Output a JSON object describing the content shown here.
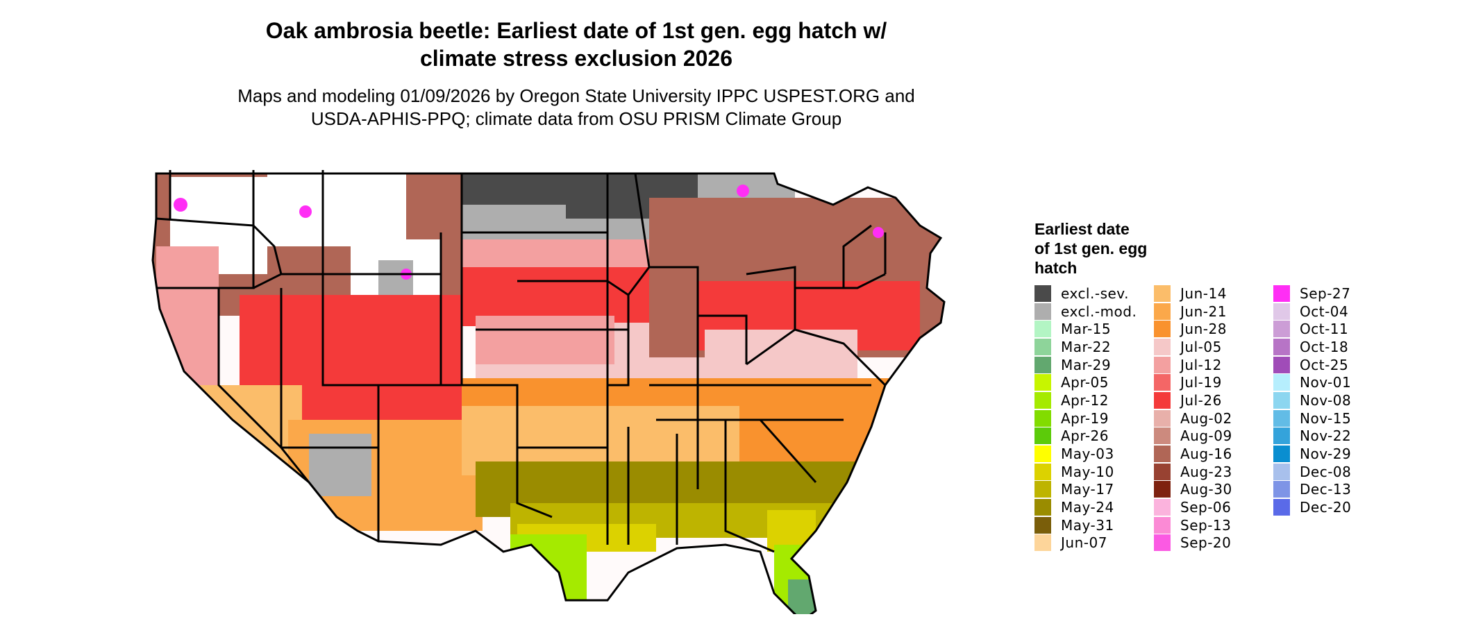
{
  "title": "Oak ambrosia beetle: Earliest date of 1st gen. egg hatch w/ climate stress exclusion 2026",
  "title_lines": [
    "Oak ambrosia beetle: Earliest date of 1st gen. egg hatch w/",
    "climate stress exclusion 2026"
  ],
  "subtitle_lines": [
    "Maps and modeling 01/09/2026 by Oregon State University IPPC USPEST.ORG and",
    "USDA-APHIS-PPQ; climate data from OSU PRISM Climate Group"
  ],
  "map": {
    "region": "contiguous United States",
    "boundaries": "state outlines",
    "legend_placement": "right"
  },
  "legend": {
    "title_lines": [
      "Earliest date",
      "of 1st gen. egg",
      "hatch"
    ],
    "items": [
      {
        "label": "excl.-sev.",
        "color": "#4a4a4a"
      },
      {
        "label": "excl.-mod.",
        "color": "#aeaeae"
      },
      {
        "label": "Mar-15",
        "color": "#b3f5c4"
      },
      {
        "label": "Mar-22",
        "color": "#8ed49a"
      },
      {
        "label": "Mar-29",
        "color": "#62a86f"
      },
      {
        "label": "Apr-05",
        "color": "#c7f500"
      },
      {
        "label": "Apr-12",
        "color": "#a5ea00"
      },
      {
        "label": "Apr-19",
        "color": "#82dc00"
      },
      {
        "label": "Apr-26",
        "color": "#5ccb0a"
      },
      {
        "label": "May-03",
        "color": "#ffff00"
      },
      {
        "label": "May-10",
        "color": "#dcd200"
      },
      {
        "label": "May-17",
        "color": "#beb400"
      },
      {
        "label": "May-24",
        "color": "#9a8c00"
      },
      {
        "label": "May-31",
        "color": "#7a5e0a"
      },
      {
        "label": "Jun-07",
        "color": "#fdd59a"
      },
      {
        "label": "Jun-14",
        "color": "#fbbd6a"
      },
      {
        "label": "Jun-21",
        "color": "#fba84a"
      },
      {
        "label": "Jun-28",
        "color": "#f9922e"
      },
      {
        "label": "Jul-05",
        "color": "#f5c8c8"
      },
      {
        "label": "Jul-12",
        "color": "#f3a0a0"
      },
      {
        "label": "Jul-19",
        "color": "#f46666"
      },
      {
        "label": "Jul-26",
        "color": "#f43a3a"
      },
      {
        "label": "Aug-02",
        "color": "#e8b0aa"
      },
      {
        "label": "Aug-09",
        "color": "#cc8a7e"
      },
      {
        "label": "Aug-16",
        "color": "#b06656"
      },
      {
        "label": "Aug-23",
        "color": "#984232"
      },
      {
        "label": "Aug-30",
        "color": "#7e2210"
      },
      {
        "label": "Sep-06",
        "color": "#fbb3dd"
      },
      {
        "label": "Sep-13",
        "color": "#fb8ad5"
      },
      {
        "label": "Sep-20",
        "color": "#fb5ae3"
      },
      {
        "label": "Sep-27",
        "color": "#ff2ef5"
      },
      {
        "label": "Oct-04",
        "color": "#e0c8e8"
      },
      {
        "label": "Oct-11",
        "color": "#cc9dd6"
      },
      {
        "label": "Oct-18",
        "color": "#b774c6"
      },
      {
        "label": "Oct-25",
        "color": "#a04cb8"
      },
      {
        "label": "Nov-01",
        "color": "#b6eefd"
      },
      {
        "label": "Nov-08",
        "color": "#8cd6f0"
      },
      {
        "label": "Nov-15",
        "color": "#62bce6"
      },
      {
        "label": "Nov-22",
        "color": "#34a3db"
      },
      {
        "label": "Nov-29",
        "color": "#0a8ed0"
      },
      {
        "label": "Dec-08",
        "color": "#a8c0ec"
      },
      {
        "label": "Dec-13",
        "color": "#7e94e6"
      },
      {
        "label": "Dec-20",
        "color": "#5a6ae8"
      }
    ]
  },
  "region_colors": {
    "excluded_severe": "#4a4a4a",
    "excluded_moderate": "#aeaeae",
    "no_hatch": "#ffffff",
    "jul_late": "#f43a3a",
    "jul_early": "#f5c8c8",
    "aug": "#b06656",
    "jun": "#f9922e",
    "may_late": "#9a8c00",
    "may_early": "#dcd200",
    "apr": "#a5ea00",
    "mar": "#62a86f",
    "sep": "#ff2ef5"
  }
}
